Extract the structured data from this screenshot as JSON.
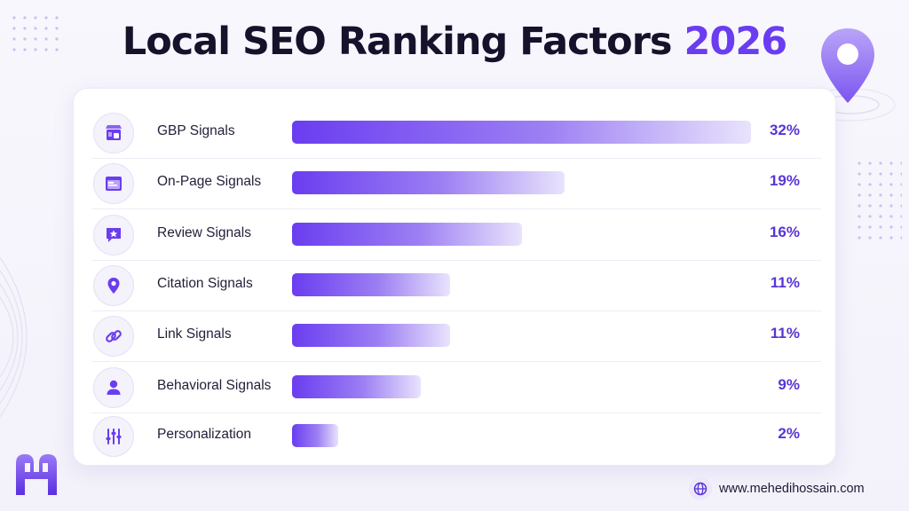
{
  "header": {
    "title_main": "Local SEO Ranking Factors",
    "title_year": "2026"
  },
  "chart_data": {
    "type": "bar",
    "orientation": "horizontal",
    "title": "Local SEO Ranking Factors 2026",
    "categories": [
      "GBP Signals",
      "On-Page Signals",
      "Review Signals",
      "Citation Signals",
      "Link Signals",
      "Behavioral Signals",
      "Personalization"
    ],
    "values": [
      32,
      19,
      16,
      11,
      11,
      9,
      2
    ],
    "value_labels": [
      "32%",
      "19%",
      "16%",
      "11%",
      "11%",
      "9%",
      "2%"
    ],
    "icons": [
      "storefront-icon",
      "webpage-icon",
      "review-star-icon",
      "location-pin-icon",
      "link-icon",
      "user-icon",
      "sliders-icon"
    ],
    "xlim": [
      0,
      32
    ],
    "bar_color_start": "#6a3df0",
    "bar_color_end": "#e9e3fc",
    "grid": false,
    "legend": "none"
  },
  "footer": {
    "website": "www.mehedihossain.com"
  },
  "colors": {
    "accent": "#6a3df0",
    "value_text": "#5a34d6",
    "title_text": "#15122b"
  }
}
